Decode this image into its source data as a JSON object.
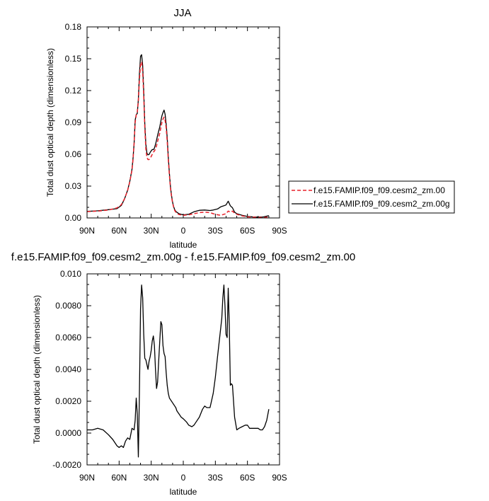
{
  "chart_data": [
    {
      "type": "line",
      "title": "JJA",
      "xlabel": "latitude",
      "ylabel": "Total dust optical depth (dimensionless)",
      "xlim": [
        90,
        -90
      ],
      "ylim": [
        0,
        0.18
      ],
      "xticks": [
        90,
        60,
        30,
        0,
        -30,
        -60,
        -90
      ],
      "xtick_labels": [
        "90N",
        "60N",
        "30N",
        "0",
        "30S",
        "60S",
        "90S"
      ],
      "yticks": [
        0,
        0.03,
        0.06,
        0.09,
        0.12,
        0.15,
        0.18
      ],
      "ytick_labels": [
        "0.00",
        "0.03",
        "0.06",
        "0.09",
        "0.12",
        "0.15",
        "0.18"
      ],
      "legend_position": "right",
      "series": [
        {
          "name": "f.e15.FAMIP.f09_f09.cesm2_zm.00",
          "color": "#e8202a",
          "dash": "dashed",
          "x": [
            90,
            80,
            70,
            62,
            58,
            55,
            52,
            50,
            48,
            47,
            46,
            45,
            44,
            43,
            42,
            41,
            40,
            39,
            38,
            37,
            36,
            35,
            34,
            33,
            32,
            31,
            30,
            29,
            28,
            27,
            26,
            25,
            24,
            23,
            22,
            21,
            20,
            19,
            18,
            17,
            16,
            15,
            14,
            13,
            12,
            11,
            10,
            9,
            8,
            7,
            6,
            5,
            4,
            2,
            0,
            -5,
            -10,
            -15,
            -20,
            -25,
            -28,
            -32,
            -35,
            -38,
            -40,
            -42,
            -44,
            -46,
            -48,
            -50,
            -55,
            -60,
            -65,
            -70,
            -75,
            -80
          ],
          "y": [
            0.006,
            0.0065,
            0.0075,
            0.0095,
            0.0125,
            0.018,
            0.026,
            0.034,
            0.045,
            0.055,
            0.07,
            0.09,
            0.097,
            0.1,
            0.11,
            0.13,
            0.145,
            0.147,
            0.138,
            0.115,
            0.085,
            0.065,
            0.057,
            0.055,
            0.055,
            0.056,
            0.058,
            0.06,
            0.062,
            0.063,
            0.065,
            0.068,
            0.072,
            0.076,
            0.08,
            0.085,
            0.09,
            0.093,
            0.095,
            0.092,
            0.085,
            0.072,
            0.055,
            0.04,
            0.028,
            0.02,
            0.014,
            0.01,
            0.007,
            0.0055,
            0.0045,
            0.0038,
            0.0032,
            0.0028,
            0.0025,
            0.003,
            0.004,
            0.005,
            0.0055,
            0.005,
            0.004,
            0.003,
            0.0025,
            0.0035,
            0.004,
            0.0065,
            0.0055,
            0.0065,
            0.0045,
            0.0035,
            0.002,
            0.001,
            0.0008,
            0.0005,
            0.0005,
            0.0008
          ]
        },
        {
          "name": "f.e15.FAMIP.f09_f09.cesm2_zm.00g",
          "color": "#000000",
          "dash": "solid",
          "x": [
            90,
            80,
            70,
            62,
            58,
            55,
            52,
            50,
            48,
            47,
            46,
            45,
            44,
            43,
            42,
            41,
            40,
            39,
            38,
            37,
            36,
            35,
            34,
            33,
            32,
            31,
            30,
            29,
            28,
            27,
            26,
            25,
            24,
            23,
            22,
            21,
            20,
            19,
            18,
            17,
            16,
            15,
            14,
            13,
            12,
            11,
            10,
            9,
            8,
            7,
            6,
            5,
            4,
            2,
            0,
            -5,
            -10,
            -15,
            -20,
            -25,
            -28,
            -32,
            -35,
            -38,
            -40,
            -42,
            -44,
            -46,
            -48,
            -50,
            -55,
            -60,
            -65,
            -70,
            -75,
            -80
          ],
          "y": [
            0.0062,
            0.0067,
            0.0078,
            0.0087,
            0.0117,
            0.0178,
            0.0263,
            0.0345,
            0.0458,
            0.0563,
            0.0702,
            0.0922,
            0.0972,
            0.0985,
            0.1115,
            0.1355,
            0.1523,
            0.1538,
            0.1438,
            0.1195,
            0.0889,
            0.0695,
            0.0611,
            0.0595,
            0.0598,
            0.0618,
            0.0633,
            0.0645,
            0.0643,
            0.0658,
            0.0693,
            0.0733,
            0.0778,
            0.0818,
            0.0858,
            0.0913,
            0.0962,
            0.0993,
            0.1016,
            0.0977,
            0.0885,
            0.0755,
            0.0575,
            0.0418,
            0.0294,
            0.0211,
            0.0148,
            0.0106,
            0.0077,
            0.0063,
            0.0054,
            0.0047,
            0.004,
            0.0034,
            0.0029,
            0.0035,
            0.0058,
            0.0072,
            0.0075,
            0.007,
            0.0075,
            0.0085,
            0.0105,
            0.0115,
            0.0123,
            0.0158,
            0.0115,
            0.0096,
            0.0055,
            0.004,
            0.0025,
            0.0014,
            0.001,
            0.0008,
            0.001,
            0.0022
          ]
        }
      ]
    },
    {
      "type": "line",
      "title": "f.e15.FAMIP.f09_f09.cesm2_zm.00g - f.e15.FAMIP.f09_f09.cesm2_zm.00",
      "xlabel": "latitude",
      "ylabel": "Total dust optical depth (dimensionless)",
      "xlim": [
        90,
        -90
      ],
      "ylim": [
        -0.002,
        0.01
      ],
      "xticks": [
        90,
        60,
        30,
        0,
        -30,
        -60,
        -90
      ],
      "xtick_labels": [
        "90N",
        "60N",
        "30N",
        "0",
        "30S",
        "60S",
        "90S"
      ],
      "yticks": [
        -0.002,
        0,
        0.002,
        0.004,
        0.006,
        0.008,
        0.01
      ],
      "ytick_labels": [
        "-0.0020",
        "0.0000",
        "0.0020",
        "0.0040",
        "0.0060",
        "0.0080",
        "0.010"
      ],
      "series": [
        {
          "color": "#000000",
          "dash": "solid",
          "x": [
            90,
            85,
            80,
            75,
            70,
            66,
            64,
            62,
            60,
            58,
            56,
            54,
            52,
            50,
            48,
            46,
            45,
            44,
            43,
            42,
            41,
            40,
            39,
            38,
            37,
            36,
            35,
            34,
            33,
            32,
            31,
            30,
            29,
            28,
            27,
            26,
            25,
            24,
            23,
            22,
            21,
            20,
            19,
            18,
            17,
            16,
            15,
            14,
            13,
            12,
            11,
            10,
            9,
            8,
            7,
            6,
            5,
            4,
            2,
            0,
            -3,
            -5,
            -8,
            -10,
            -12,
            -15,
            -18,
            -20,
            -22,
            -25,
            -28,
            -30,
            -32,
            -34,
            -36,
            -37,
            -38,
            -39,
            -40,
            -41,
            -42,
            -43,
            -44,
            -45,
            -46,
            -47,
            -48,
            -50,
            -52,
            -55,
            -58,
            -60,
            -62,
            -65,
            -68,
            -70,
            -72,
            -74,
            -76,
            -78,
            -80
          ],
          "y": [
            0.0002,
            0.0002,
            0.0003,
            0.0002,
            -0.0001,
            -0.0004,
            -0.0006,
            -0.0008,
            -0.0009,
            -0.0008,
            -0.0009,
            -0.0005,
            -0.0003,
            -0.0004,
            0.0003,
            0.0002,
            0.0008,
            0.0022,
            0.0012,
            -0.0015,
            0.0025,
            0.0078,
            0.0093,
            0.0085,
            0.0062,
            0.0047,
            0.0046,
            0.0043,
            0.004,
            0.0045,
            0.0048,
            0.0052,
            0.0058,
            0.0061,
            0.0055,
            0.004,
            0.0028,
            0.0032,
            0.0045,
            0.0058,
            0.007,
            0.0068,
            0.0055,
            0.005,
            0.0048,
            0.0038,
            0.003,
            0.0025,
            0.0022,
            0.0021,
            0.002,
            0.0019,
            0.0018,
            0.0017,
            0.0016,
            0.0014,
            0.0013,
            0.0012,
            0.001,
            0.0009,
            0.0007,
            0.0005,
            0.0004,
            0.0005,
            0.0007,
            0.001,
            0.0015,
            0.0017,
            0.0016,
            0.0016,
            0.0025,
            0.0035,
            0.0048,
            0.006,
            0.0072,
            0.0085,
            0.0093,
            0.008,
            0.0062,
            0.006,
            0.0091,
            0.0068,
            0.003,
            0.0031,
            0.003,
            0.002,
            0.001,
            0.0002,
            0.0003,
            0.0004,
            0.0005,
            0.0005,
            0.0003,
            0.0003,
            0.0003,
            0.0003,
            0.0002,
            0.0002,
            0.0004,
            0.0008,
            0.0015
          ]
        }
      ]
    }
  ]
}
